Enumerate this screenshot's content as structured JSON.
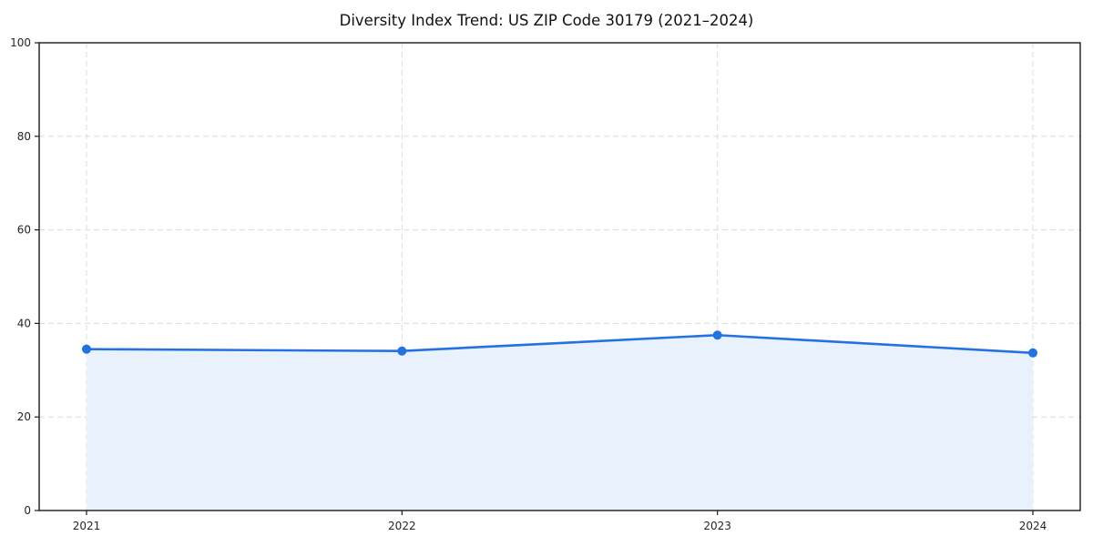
{
  "chart_data": {
    "type": "area",
    "title": "Diversity Index Trend: US ZIP Code 30179 (2021–2024)",
    "x_labels": [
      "2021",
      "2022",
      "2023",
      "2024"
    ],
    "values": [
      34.5,
      34.1,
      37.5,
      33.7
    ],
    "xlabel": "",
    "ylabel": "",
    "ylim": [
      0,
      100
    ],
    "yticks": [
      0,
      20,
      40,
      60,
      80,
      100
    ],
    "grid": true,
    "grid_style": "dashed",
    "legend": "none",
    "colors": {
      "line": "#2472e0",
      "marker": "#2472e0",
      "fill": "#e9f1fc",
      "grid": "#dcdcdc",
      "axis": "#1a1a1a",
      "tick_label": "#262626",
      "title": "#111111",
      "background": "#ffffff"
    }
  }
}
